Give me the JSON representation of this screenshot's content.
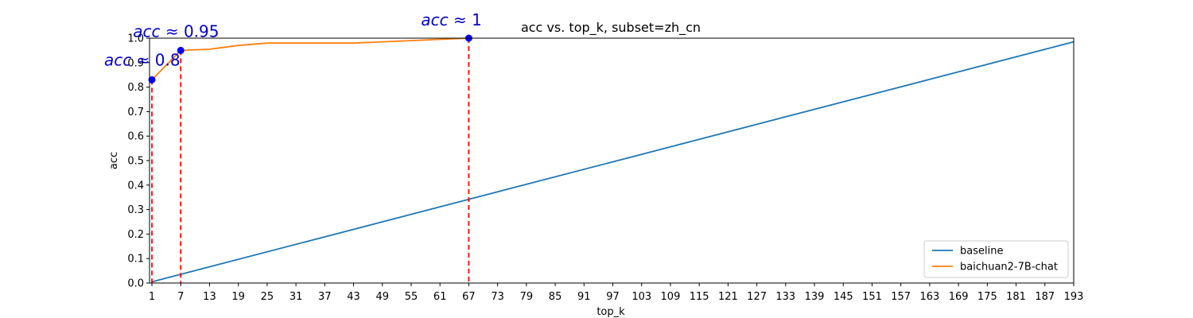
{
  "chart_data": {
    "type": "line",
    "title": "acc vs. top_k, subset=zh_cn",
    "xlabel": "top_k",
    "ylabel": "acc",
    "xlim": [
      0.5,
      193
    ],
    "ylim": [
      0,
      1.0
    ],
    "xticks": [
      1,
      7,
      13,
      19,
      25,
      31,
      37,
      43,
      49,
      55,
      61,
      67,
      73,
      79,
      85,
      91,
      97,
      103,
      109,
      115,
      121,
      127,
      133,
      139,
      145,
      151,
      157,
      163,
      169,
      175,
      181,
      187,
      193
    ],
    "yticks": [
      0.0,
      0.1,
      0.2,
      0.3,
      0.4,
      0.5,
      0.6,
      0.7,
      0.8,
      0.9,
      1.0
    ],
    "ytick_labels": [
      "0.0",
      "0.1",
      "0.2",
      "0.3",
      "0.4",
      "0.5",
      "0.6",
      "0.7",
      "0.8",
      "0.9",
      "1.0"
    ],
    "legend_position": "lower-right",
    "grid": false,
    "series": [
      {
        "name": "baseline",
        "color": "#1f77b4",
        "x": [
          1,
          193
        ],
        "y": [
          0.005,
          0.985
        ]
      },
      {
        "name": "baichuan2-7B-chat",
        "color": "#ff7f0e",
        "x": [
          1,
          7,
          13,
          19,
          25,
          31,
          37,
          43,
          49,
          55,
          61,
          67
        ],
        "y": [
          0.83,
          0.95,
          0.955,
          0.97,
          0.98,
          0.98,
          0.98,
          0.98,
          0.985,
          0.99,
          0.995,
          1.0
        ]
      }
    ],
    "annotations": [
      {
        "x": 1,
        "y": 0.83,
        "italic": "acc",
        "rest": "≈ 0.8"
      },
      {
        "x": 7,
        "y": 0.95,
        "italic": "acc",
        "rest": "≈ 0.95"
      },
      {
        "x": 67,
        "y": 1.0,
        "italic": "acc",
        "rest": "≈ 1"
      }
    ],
    "marker_color": "#0000ff",
    "vline_color": "#ff0000"
  }
}
